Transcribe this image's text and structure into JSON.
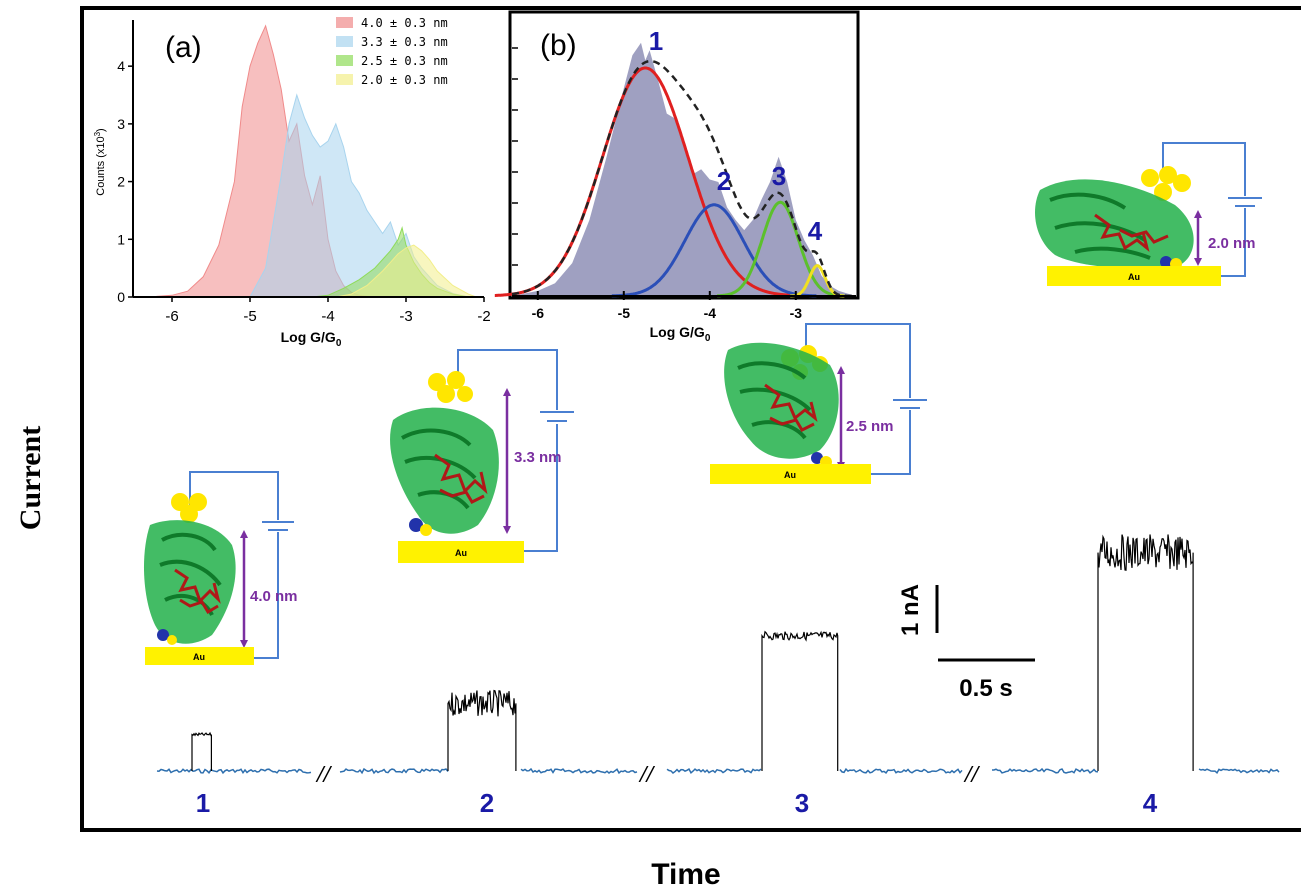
{
  "figure": {
    "y_axis_label": "Current",
    "x_axis_label": "Time",
    "scale_bar_current": "1 nA",
    "scale_bar_time": "0.5 s",
    "break_mark": "//",
    "trace_color_baseline": "#2e6fae",
    "trace_color_event": "#000000"
  },
  "junctions": [
    {
      "number": "1",
      "distance": "4.0 nm",
      "electrode": "Au"
    },
    {
      "number": "2",
      "distance": "3.3 nm",
      "electrode": "Au"
    },
    {
      "number": "3",
      "distance": "2.5 nm",
      "electrode": "Au"
    },
    {
      "number": "4",
      "distance": "2.0 nm",
      "electrode": "Au"
    }
  ],
  "colors": {
    "label_blue": "#1a1aa6",
    "distance_purple": "#7a2fa0",
    "electrode_yellow": "#fff200",
    "wire_blue": "#4a7fd1",
    "protein_green": "#22b04a",
    "heme_red": "#b01818"
  },
  "chart_data": [
    {
      "panel": "(a)",
      "type": "area",
      "xlabel": "Log G/G0",
      "ylabel": "Counts (x10^3)",
      "xlim": [
        -6.5,
        -2
      ],
      "ylim": [
        0,
        4.8
      ],
      "xticks": [
        -6,
        -5,
        -4,
        -3,
        -2
      ],
      "yticks": [
        0,
        1,
        2,
        3,
        4
      ],
      "legend_position": "top-right",
      "series": [
        {
          "name": "4.0 ± 0.3 nm",
          "color": "#f08a8a",
          "x": [
            -6.5,
            -6.2,
            -6.0,
            -5.8,
            -5.6,
            -5.4,
            -5.2,
            -5.1,
            -5.0,
            -4.9,
            -4.8,
            -4.7,
            -4.6,
            -4.5,
            -4.4,
            -4.3,
            -4.2,
            -4.1,
            -4.0,
            -3.9,
            -3.8,
            -3.7,
            -3.6,
            -3.5,
            -3.4
          ],
          "y": [
            0,
            0.01,
            0.03,
            0.1,
            0.35,
            0.9,
            2.0,
            3.3,
            4.0,
            4.4,
            4.7,
            4.2,
            3.6,
            2.7,
            3.0,
            2.1,
            1.6,
            2.1,
            1.0,
            0.45,
            0.2,
            0.08,
            0.03,
            0.01,
            0
          ]
        },
        {
          "name": "3.3 ± 0.3 nm",
          "color": "#a8d4ee",
          "x": [
            -5.0,
            -4.8,
            -4.6,
            -4.5,
            -4.4,
            -4.3,
            -4.2,
            -4.1,
            -4.0,
            -3.9,
            -3.8,
            -3.7,
            -3.6,
            -3.5,
            -3.4,
            -3.3,
            -3.2,
            -3.1,
            -3.0,
            -2.9,
            -2.8,
            -2.6,
            -2.4,
            -2.2
          ],
          "y": [
            0,
            0.5,
            2.1,
            3.0,
            3.5,
            3.1,
            2.8,
            2.6,
            2.7,
            3.0,
            2.6,
            2.0,
            1.8,
            1.5,
            1.3,
            1.1,
            1.3,
            0.9,
            1.1,
            0.7,
            0.5,
            0.2,
            0.06,
            0
          ]
        },
        {
          "name": "2.5 ± 0.3 nm",
          "color": "#8fdb5a",
          "x": [
            -4.2,
            -4.0,
            -3.8,
            -3.6,
            -3.4,
            -3.3,
            -3.2,
            -3.1,
            -3.05,
            -3.0,
            -2.9,
            -2.8,
            -2.7,
            -2.6,
            -2.4,
            -2.2
          ],
          "y": [
            0,
            0.03,
            0.15,
            0.3,
            0.5,
            0.65,
            0.8,
            1.0,
            1.2,
            0.9,
            0.6,
            0.4,
            0.25,
            0.15,
            0.05,
            0
          ]
        },
        {
          "name": "2.0 ± 0.3 nm",
          "color": "#f2ee8a",
          "x": [
            -3.9,
            -3.7,
            -3.5,
            -3.3,
            -3.2,
            -3.1,
            -3.0,
            -2.9,
            -2.8,
            -2.7,
            -2.6,
            -2.4,
            -2.2,
            -2.1
          ],
          "y": [
            0,
            0.05,
            0.2,
            0.45,
            0.6,
            0.75,
            0.85,
            0.9,
            0.8,
            0.65,
            0.45,
            0.2,
            0.05,
            0
          ]
        }
      ]
    },
    {
      "panel": "(b)",
      "type": "area",
      "xlabel": "Log G/G0",
      "xlim": [
        -6.3,
        -2.3
      ],
      "ylim": [
        0,
        1.05
      ],
      "xticks": [
        -6,
        -5,
        -4,
        -3
      ],
      "histogram_color": "#8e8fb6",
      "histogram": {
        "x": [
          -6.3,
          -6.0,
          -5.8,
          -5.6,
          -5.4,
          -5.2,
          -5.0,
          -4.9,
          -4.8,
          -4.75,
          -4.7,
          -4.6,
          -4.5,
          -4.4,
          -4.3,
          -4.2,
          -4.1,
          -4.0,
          -3.9,
          -3.8,
          -3.7,
          -3.6,
          -3.5,
          -3.4,
          -3.3,
          -3.2,
          -3.1,
          -3.0,
          -2.9,
          -2.8,
          -2.7,
          -2.6,
          -2.5,
          -2.4,
          -2.3
        ],
        "y": [
          0,
          0.02,
          0.05,
          0.13,
          0.3,
          0.55,
          0.82,
          0.95,
          1.0,
          0.93,
          0.97,
          0.85,
          0.72,
          0.7,
          0.6,
          0.48,
          0.5,
          0.46,
          0.45,
          0.35,
          0.3,
          0.26,
          0.3,
          0.38,
          0.45,
          0.55,
          0.45,
          0.3,
          0.22,
          0.16,
          0.08,
          0.04,
          0.02,
          0.01,
          0
        ]
      },
      "fits": [
        {
          "label": "1",
          "color": "#e02020",
          "mu": -4.75,
          "sigma": 0.5,
          "amplitude": 0.9
        },
        {
          "label": "2",
          "color": "#2b4fb8",
          "mu": -3.95,
          "sigma": 0.34,
          "amplitude": 0.36
        },
        {
          "label": "3",
          "color": "#5cc02c",
          "mu": -3.18,
          "sigma": 0.21,
          "amplitude": 0.37
        },
        {
          "label": "4",
          "color": "#f0e020",
          "mu": -2.75,
          "sigma": 0.09,
          "amplitude": 0.12
        }
      ],
      "envelope": {
        "style": "dashed",
        "color": "#222222"
      }
    },
    {
      "panel": "main",
      "type": "line",
      "xlabel": "Time",
      "ylabel": "Current",
      "events": [
        {
          "label": "1",
          "plateau_nA": 0.7,
          "duration_s": 0.1,
          "noise_nA": 0.03
        },
        {
          "label": "2",
          "plateau_nA": 1.3,
          "duration_s": 0.35,
          "noise_nA": 0.25
        },
        {
          "label": "3",
          "plateau_nA": 2.6,
          "duration_s": 0.39,
          "noise_nA": 0.08
        },
        {
          "label": "4",
          "plateau_nA": 4.2,
          "duration_s": 0.49,
          "noise_nA": 0.35
        }
      ]
    }
  ]
}
